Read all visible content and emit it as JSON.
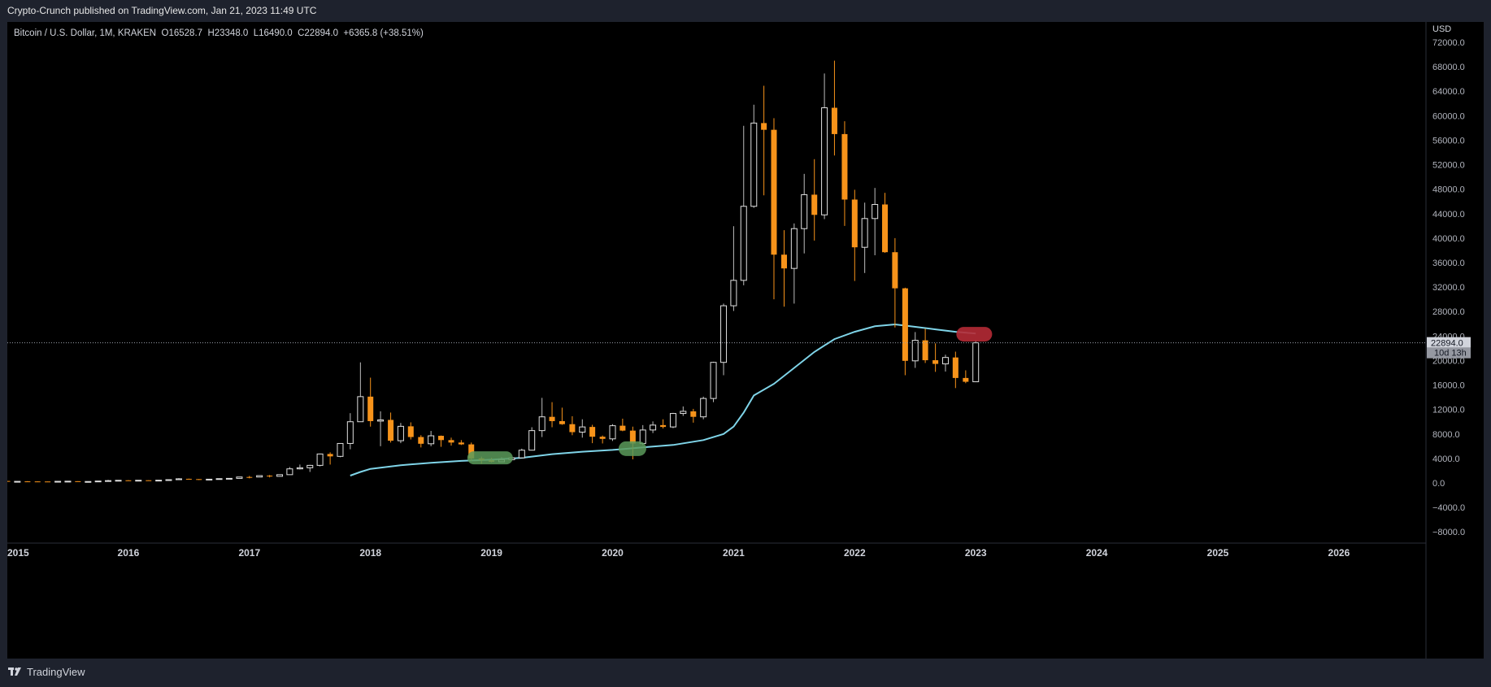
{
  "header": {
    "published": "Crypto-Crunch published on TradingView.com, Jan 21, 2023 11:49 UTC"
  },
  "legend": {
    "symbol": "Bitcoin / U.S. Dollar, 1M, KRAKEN",
    "open_label": "O",
    "open": "16528.7",
    "high_label": "H",
    "high": "23348.0",
    "low_label": "L",
    "low": "16490.0",
    "close_label": "C",
    "close": "22894.0",
    "change": "+6365.8 (+38.51%)"
  },
  "footer": {
    "brand": "TradingView"
  },
  "colors": {
    "up": "#e0e0e0",
    "down": "#f7931a",
    "ma": "#7fd4e8",
    "highlight_green": "#5a9a5a",
    "highlight_red": "#b52a35",
    "price_tag": "#d1d4dc"
  },
  "chart_data": {
    "type": "candlestick",
    "title": "Bitcoin / U.S. Dollar, 1M, KRAKEN",
    "currency": "USD",
    "ylim": [
      -10000,
      74000
    ],
    "y_ticks": [
      72000,
      68000,
      64000,
      60000,
      56000,
      52000,
      48000,
      44000,
      40000,
      36000,
      32000,
      28000,
      24000,
      20000,
      16000,
      12000,
      8000,
      4000,
      0,
      -4000,
      -8000
    ],
    "y_tick_labels": [
      "72000.0",
      "68000.0",
      "64000.0",
      "60000.0",
      "56000.0",
      "52000.0",
      "48000.0",
      "44000.0",
      "40000.0",
      "36000.0",
      "32000.0",
      "28000.0",
      "24000.0",
      "20000.0",
      "16000.0",
      "12000.0",
      "8000.0",
      "4000.0",
      "0.0",
      "−4000.0",
      "−8000.0"
    ],
    "x_tick_labels": [
      "2015",
      "2016",
      "2017",
      "2018",
      "2019",
      "2020",
      "2021",
      "2022",
      "2023",
      "2024",
      "2025",
      "2026"
    ],
    "x_tick_years": [
      2015,
      2016,
      2017,
      2018,
      2019,
      2020,
      2021,
      2022,
      2023,
      2024,
      2025,
      2026
    ],
    "last_price": 22894,
    "last_price_label": "22894.0",
    "countdown_label": "10d 13h",
    "candles": [
      {
        "t": 2015.0,
        "o": 320,
        "h": 330,
        "l": 180,
        "c": 220
      },
      {
        "t": 2015.083,
        "o": 220,
        "h": 265,
        "l": 215,
        "c": 255
      },
      {
        "t": 2015.167,
        "o": 255,
        "h": 300,
        "l": 240,
        "c": 245
      },
      {
        "t": 2015.25,
        "o": 245,
        "h": 260,
        "l": 215,
        "c": 235
      },
      {
        "t": 2015.333,
        "o": 235,
        "h": 245,
        "l": 225,
        "c": 230
      },
      {
        "t": 2015.417,
        "o": 230,
        "h": 270,
        "l": 220,
        "c": 263
      },
      {
        "t": 2015.5,
        "o": 263,
        "h": 315,
        "l": 260,
        "c": 284
      },
      {
        "t": 2015.583,
        "o": 284,
        "h": 285,
        "l": 200,
        "c": 230
      },
      {
        "t": 2015.667,
        "o": 230,
        "h": 245,
        "l": 225,
        "c": 236
      },
      {
        "t": 2015.75,
        "o": 236,
        "h": 330,
        "l": 235,
        "c": 311
      },
      {
        "t": 2015.833,
        "o": 311,
        "h": 500,
        "l": 310,
        "c": 377
      },
      {
        "t": 2015.917,
        "o": 377,
        "h": 470,
        "l": 350,
        "c": 430
      },
      {
        "t": 2016.0,
        "o": 430,
        "h": 460,
        "l": 350,
        "c": 370
      },
      {
        "t": 2016.083,
        "o": 370,
        "h": 445,
        "l": 365,
        "c": 437
      },
      {
        "t": 2016.167,
        "o": 437,
        "h": 440,
        "l": 400,
        "c": 416
      },
      {
        "t": 2016.25,
        "o": 416,
        "h": 470,
        "l": 410,
        "c": 448
      },
      {
        "t": 2016.333,
        "o": 448,
        "h": 550,
        "l": 440,
        "c": 531
      },
      {
        "t": 2016.417,
        "o": 531,
        "h": 780,
        "l": 530,
        "c": 673
      },
      {
        "t": 2016.5,
        "o": 673,
        "h": 700,
        "l": 600,
        "c": 624
      },
      {
        "t": 2016.583,
        "o": 624,
        "h": 630,
        "l": 470,
        "c": 575
      },
      {
        "t": 2016.667,
        "o": 575,
        "h": 620,
        "l": 570,
        "c": 609
      },
      {
        "t": 2016.75,
        "o": 609,
        "h": 720,
        "l": 605,
        "c": 700
      },
      {
        "t": 2016.833,
        "o": 700,
        "h": 760,
        "l": 690,
        "c": 745
      },
      {
        "t": 2016.917,
        "o": 745,
        "h": 980,
        "l": 740,
        "c": 970
      },
      {
        "t": 2017.0,
        "o": 970,
        "h": 1150,
        "l": 750,
        "c": 965
      },
      {
        "t": 2017.083,
        "o": 965,
        "h": 1200,
        "l": 930,
        "c": 1190
      },
      {
        "t": 2017.167,
        "o": 1190,
        "h": 1300,
        "l": 900,
        "c": 1080
      },
      {
        "t": 2017.25,
        "o": 1080,
        "h": 1360,
        "l": 1070,
        "c": 1350
      },
      {
        "t": 2017.333,
        "o": 1350,
        "h": 2600,
        "l": 1340,
        "c": 2300
      },
      {
        "t": 2017.417,
        "o": 2300,
        "h": 3000,
        "l": 2200,
        "c": 2480
      },
      {
        "t": 2017.5,
        "o": 2480,
        "h": 2950,
        "l": 1800,
        "c": 2870
      },
      {
        "t": 2017.583,
        "o": 2870,
        "h": 4800,
        "l": 2700,
        "c": 4730
      },
      {
        "t": 2017.667,
        "o": 4730,
        "h": 5000,
        "l": 3000,
        "c": 4340
      },
      {
        "t": 2017.75,
        "o": 4340,
        "h": 6500,
        "l": 4200,
        "c": 6450
      },
      {
        "t": 2017.833,
        "o": 6450,
        "h": 11400,
        "l": 5500,
        "c": 10000
      },
      {
        "t": 2017.917,
        "o": 10000,
        "h": 19700,
        "l": 10000,
        "c": 14100
      },
      {
        "t": 2018.0,
        "o": 14100,
        "h": 17200,
        "l": 9200,
        "c": 10100
      },
      {
        "t": 2018.083,
        "o": 10100,
        "h": 11700,
        "l": 6000,
        "c": 10300
      },
      {
        "t": 2018.167,
        "o": 10300,
        "h": 11500,
        "l": 6600,
        "c": 6900
      },
      {
        "t": 2018.25,
        "o": 6900,
        "h": 9800,
        "l": 6500,
        "c": 9250
      },
      {
        "t": 2018.333,
        "o": 9250,
        "h": 9900,
        "l": 7100,
        "c": 7500
      },
      {
        "t": 2018.417,
        "o": 7500,
        "h": 7800,
        "l": 5800,
        "c": 6400
      },
      {
        "t": 2018.5,
        "o": 6400,
        "h": 8500,
        "l": 6000,
        "c": 7700
      },
      {
        "t": 2018.583,
        "o": 7700,
        "h": 7750,
        "l": 5900,
        "c": 7000
      },
      {
        "t": 2018.667,
        "o": 7000,
        "h": 7400,
        "l": 6100,
        "c": 6600
      },
      {
        "t": 2018.75,
        "o": 6600,
        "h": 7000,
        "l": 6200,
        "c": 6300
      },
      {
        "t": 2018.833,
        "o": 6300,
        "h": 6600,
        "l": 3600,
        "c": 4000
      },
      {
        "t": 2018.917,
        "o": 4000,
        "h": 4300,
        "l": 3150,
        "c": 3700
      },
      {
        "t": 2019.0,
        "o": 3700,
        "h": 4100,
        "l": 3350,
        "c": 3450
      },
      {
        "t": 2019.083,
        "o": 3450,
        "h": 4200,
        "l": 3400,
        "c": 3800
      },
      {
        "t": 2019.167,
        "o": 3800,
        "h": 4100,
        "l": 3700,
        "c": 4100
      },
      {
        "t": 2019.25,
        "o": 4100,
        "h": 5600,
        "l": 4050,
        "c": 5350
      },
      {
        "t": 2019.333,
        "o": 5350,
        "h": 9100,
        "l": 5300,
        "c": 8550
      },
      {
        "t": 2019.417,
        "o": 8550,
        "h": 13900,
        "l": 7500,
        "c": 10800
      },
      {
        "t": 2019.5,
        "o": 10800,
        "h": 13200,
        "l": 9100,
        "c": 10100
      },
      {
        "t": 2019.583,
        "o": 10100,
        "h": 12300,
        "l": 9500,
        "c": 9600
      },
      {
        "t": 2019.667,
        "o": 9600,
        "h": 10900,
        "l": 7800,
        "c": 8300
      },
      {
        "t": 2019.75,
        "o": 8300,
        "h": 10400,
        "l": 7400,
        "c": 9150
      },
      {
        "t": 2019.833,
        "o": 9150,
        "h": 9500,
        "l": 6500,
        "c": 7550
      },
      {
        "t": 2019.917,
        "o": 7550,
        "h": 7750,
        "l": 6450,
        "c": 7200
      },
      {
        "t": 2020.0,
        "o": 7200,
        "h": 9600,
        "l": 6850,
        "c": 9350
      },
      {
        "t": 2020.083,
        "o": 9350,
        "h": 10500,
        "l": 8450,
        "c": 8550
      },
      {
        "t": 2020.167,
        "o": 8550,
        "h": 9200,
        "l": 3850,
        "c": 6450
      },
      {
        "t": 2020.25,
        "o": 6450,
        "h": 9450,
        "l": 6150,
        "c": 8650
      },
      {
        "t": 2020.333,
        "o": 8650,
        "h": 10050,
        "l": 8150,
        "c": 9450
      },
      {
        "t": 2020.417,
        "o": 9450,
        "h": 10400,
        "l": 8900,
        "c": 9150
      },
      {
        "t": 2020.5,
        "o": 9150,
        "h": 11450,
        "l": 8950,
        "c": 11350
      },
      {
        "t": 2020.583,
        "o": 11350,
        "h": 12500,
        "l": 10950,
        "c": 11700
      },
      {
        "t": 2020.667,
        "o": 11700,
        "h": 12100,
        "l": 9850,
        "c": 10800
      },
      {
        "t": 2020.75,
        "o": 10800,
        "h": 14100,
        "l": 10400,
        "c": 13800
      },
      {
        "t": 2020.833,
        "o": 13800,
        "h": 19800,
        "l": 13200,
        "c": 19700
      },
      {
        "t": 2020.917,
        "o": 19700,
        "h": 29300,
        "l": 17600,
        "c": 28950
      },
      {
        "t": 2021.0,
        "o": 28950,
        "h": 41950,
        "l": 28100,
        "c": 33100
      },
      {
        "t": 2021.083,
        "o": 33100,
        "h": 58350,
        "l": 32300,
        "c": 45200
      },
      {
        "t": 2021.167,
        "o": 45200,
        "h": 61800,
        "l": 44950,
        "c": 58800
      },
      {
        "t": 2021.25,
        "o": 58800,
        "h": 64900,
        "l": 47000,
        "c": 57700
      },
      {
        "t": 2021.333,
        "o": 57700,
        "h": 59600,
        "l": 30000,
        "c": 37300
      },
      {
        "t": 2021.417,
        "o": 37300,
        "h": 41300,
        "l": 28800,
        "c": 35050
      },
      {
        "t": 2021.5,
        "o": 35050,
        "h": 42400,
        "l": 29300,
        "c": 41550
      },
      {
        "t": 2021.583,
        "o": 41550,
        "h": 50500,
        "l": 37500,
        "c": 47100
      },
      {
        "t": 2021.667,
        "o": 47100,
        "h": 52900,
        "l": 39600,
        "c": 43800
      },
      {
        "t": 2021.75,
        "o": 43800,
        "h": 66900,
        "l": 43100,
        "c": 61300
      },
      {
        "t": 2021.833,
        "o": 61300,
        "h": 69000,
        "l": 53500,
        "c": 57000
      },
      {
        "t": 2021.917,
        "o": 57000,
        "h": 59100,
        "l": 42000,
        "c": 46300
      },
      {
        "t": 2022.0,
        "o": 46300,
        "h": 47900,
        "l": 33000,
        "c": 38500
      },
      {
        "t": 2022.083,
        "o": 38500,
        "h": 45800,
        "l": 34300,
        "c": 43200
      },
      {
        "t": 2022.167,
        "o": 43200,
        "h": 48200,
        "l": 37200,
        "c": 45500
      },
      {
        "t": 2022.25,
        "o": 45500,
        "h": 47400,
        "l": 37600,
        "c": 37700
      },
      {
        "t": 2022.333,
        "o": 37700,
        "h": 40000,
        "l": 25400,
        "c": 31800
      },
      {
        "t": 2022.417,
        "o": 31800,
        "h": 31900,
        "l": 17600,
        "c": 19950
      },
      {
        "t": 2022.5,
        "o": 19950,
        "h": 24650,
        "l": 18800,
        "c": 23300
      },
      {
        "t": 2022.583,
        "o": 23300,
        "h": 25200,
        "l": 19600,
        "c": 20050
      },
      {
        "t": 2022.667,
        "o": 20050,
        "h": 22800,
        "l": 18150,
        "c": 19450
      },
      {
        "t": 2022.75,
        "o": 19450,
        "h": 20950,
        "l": 18200,
        "c": 20500
      },
      {
        "t": 2022.833,
        "o": 20500,
        "h": 21450,
        "l": 15500,
        "c": 17150
      },
      {
        "t": 2022.917,
        "o": 17150,
        "h": 18400,
        "l": 16300,
        "c": 16530
      },
      {
        "t": 2023.0,
        "o": 16530,
        "h": 23350,
        "l": 16490,
        "c": 22894
      }
    ],
    "ma_line": [
      {
        "t": 2017.833,
        "v": 1200
      },
      {
        "t": 2017.917,
        "v": 1800
      },
      {
        "t": 2018.0,
        "v": 2300
      },
      {
        "t": 2018.25,
        "v": 2900
      },
      {
        "t": 2018.5,
        "v": 3300
      },
      {
        "t": 2018.75,
        "v": 3600
      },
      {
        "t": 2019.0,
        "v": 3800
      },
      {
        "t": 2019.25,
        "v": 4100
      },
      {
        "t": 2019.5,
        "v": 4700
      },
      {
        "t": 2019.75,
        "v": 5100
      },
      {
        "t": 2020.0,
        "v": 5400
      },
      {
        "t": 2020.25,
        "v": 5800
      },
      {
        "t": 2020.5,
        "v": 6200
      },
      {
        "t": 2020.75,
        "v": 7000
      },
      {
        "t": 2020.917,
        "v": 8000
      },
      {
        "t": 2021.0,
        "v": 9200
      },
      {
        "t": 2021.083,
        "v": 11500
      },
      {
        "t": 2021.167,
        "v": 14300
      },
      {
        "t": 2021.333,
        "v": 16200
      },
      {
        "t": 2021.5,
        "v": 18800
      },
      {
        "t": 2021.667,
        "v": 21400
      },
      {
        "t": 2021.833,
        "v": 23500
      },
      {
        "t": 2022.0,
        "v": 24700
      },
      {
        "t": 2022.167,
        "v": 25600
      },
      {
        "t": 2022.333,
        "v": 25900
      },
      {
        "t": 2022.5,
        "v": 25500
      },
      {
        "t": 2022.667,
        "v": 25100
      },
      {
        "t": 2022.833,
        "v": 24700
      },
      {
        "t": 2023.0,
        "v": 24400
      }
    ]
  }
}
